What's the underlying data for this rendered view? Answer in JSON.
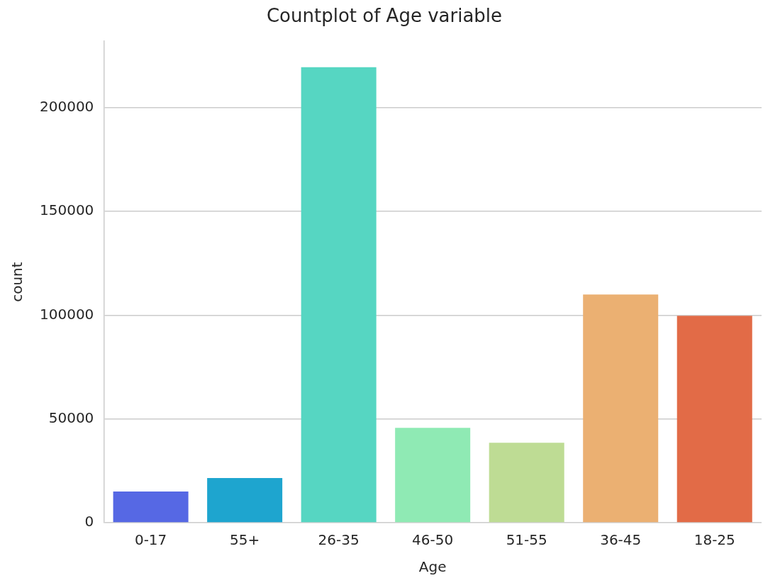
{
  "chart_data": {
    "type": "bar",
    "title": "Countplot of Age variable",
    "xlabel": "Age",
    "ylabel": "count",
    "categories": [
      "0-17",
      "55+",
      "26-35",
      "46-50",
      "51-55",
      "36-45",
      "18-25"
    ],
    "values": [
      15000,
      21500,
      219500,
      45700,
      38500,
      110000,
      99700
    ],
    "colors": [
      "#5668e4",
      "#1ea5cf",
      "#56d6c2",
      "#8feab4",
      "#bedc94",
      "#ebb072",
      "#e26b47"
    ],
    "ylim": [
      0,
      232000
    ],
    "yticks": [
      0,
      50000,
      100000,
      150000,
      200000
    ],
    "grid": "y",
    "legend": false
  }
}
